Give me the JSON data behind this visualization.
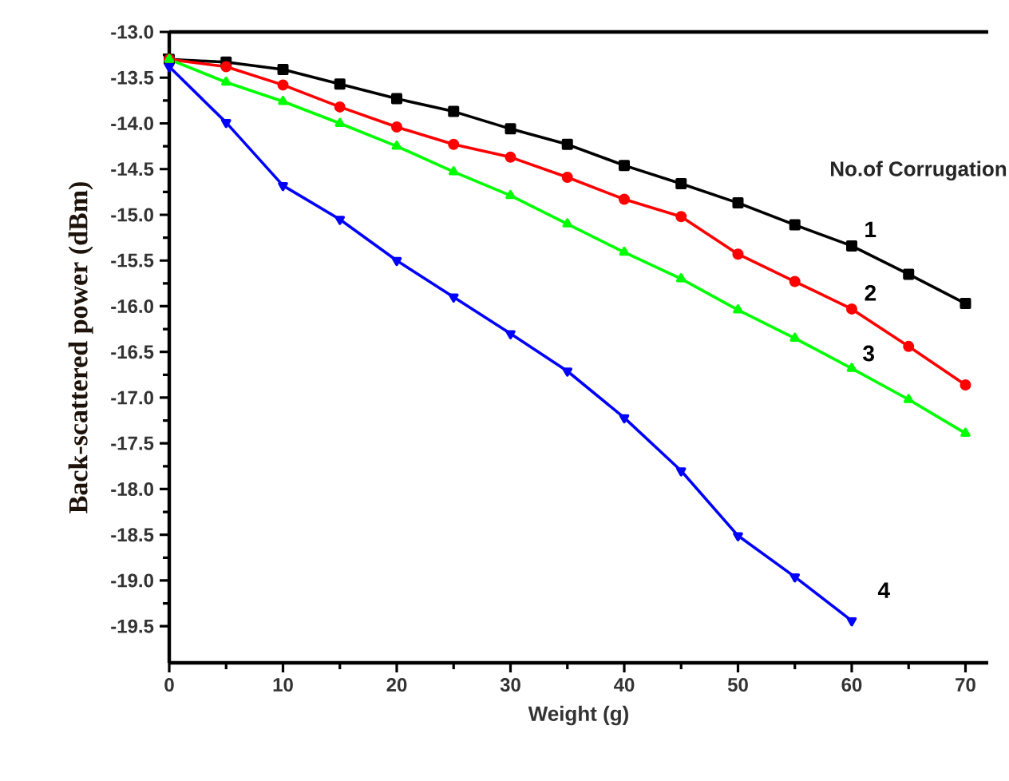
{
  "chart_data": {
    "type": "line",
    "xlabel": "Weight (g)",
    "ylabel": "Back-scattered power (dBm)",
    "legend_title": "No.of Corrugation",
    "x": [
      0,
      5,
      10,
      15,
      20,
      25,
      30,
      35,
      40,
      45,
      50,
      55,
      60,
      65,
      70
    ],
    "xlim": [
      0,
      72
    ],
    "xticks": [
      0,
      10,
      20,
      30,
      40,
      50,
      60,
      70
    ],
    "ylim": [
      -19.9,
      -13
    ],
    "yticks": [
      {
        "value": -13,
        "label": "-13.0"
      },
      {
        "value": -13.5,
        "label": "-13.5"
      },
      {
        "value": -14,
        "label": "-14.0"
      },
      {
        "value": -14.5,
        "label": "-14.5"
      },
      {
        "value": -15,
        "label": "-15.0"
      },
      {
        "value": -15.5,
        "label": "-15.5"
      },
      {
        "value": -16,
        "label": "-16.0"
      },
      {
        "value": -16.5,
        "label": "-16.5"
      },
      {
        "value": -17,
        "label": "-17.0"
      },
      {
        "value": -17.5,
        "label": "-17.5"
      },
      {
        "value": -18,
        "label": "-18.0"
      },
      {
        "value": -18.5,
        "label": "-18.5"
      },
      {
        "value": -19,
        "label": "-19.0"
      },
      {
        "value": -19.5,
        "label": "-19.5"
      }
    ],
    "grid": false,
    "line_style": "solid",
    "series": [
      {
        "name": "1",
        "color": "#000000",
        "marker": "square",
        "values": [
          -13.3,
          -13.33,
          -13.41,
          -13.57,
          -13.73,
          -13.87,
          -14.06,
          -14.23,
          -14.46,
          -14.66,
          -14.87,
          -15.11,
          -15.34,
          -15.65,
          -15.97
        ]
      },
      {
        "name": "2",
        "color": "#ff0000",
        "marker": "circle",
        "values": [
          -13.3,
          -13.38,
          -13.58,
          -13.82,
          -14.04,
          -14.23,
          -14.37,
          -14.59,
          -14.83,
          -15.02,
          -15.43,
          -15.73,
          -16.03,
          -16.44,
          -16.86
        ]
      },
      {
        "name": "3",
        "color": "#00ff00",
        "marker": "triangle",
        "values": [
          -13.3,
          -13.55,
          -13.76,
          -14.0,
          -14.25,
          -14.53,
          -14.79,
          -15.1,
          -15.41,
          -15.7,
          -16.04,
          -16.35,
          -16.68,
          -17.02,
          -17.39
        ]
      },
      {
        "name": "4",
        "color": "#0000ff",
        "marker": "triangle-down",
        "values": [
          -13.38,
          -13.99,
          -14.68,
          -15.05,
          -15.5,
          -15.9,
          -16.3,
          -16.71,
          -17.22,
          -17.8,
          -18.51,
          -18.96,
          -19.44,
          null,
          null
        ]
      }
    ]
  }
}
